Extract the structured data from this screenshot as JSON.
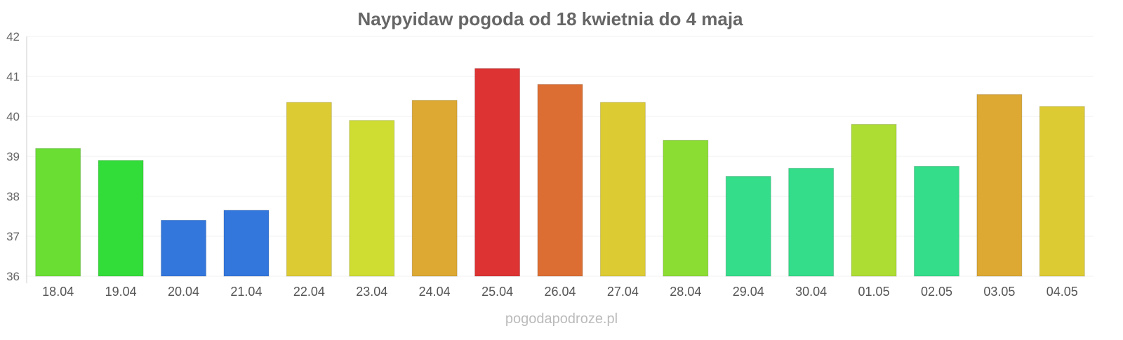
{
  "chart_data": {
    "type": "bar",
    "title": "Naypyidaw pogoda od 18 kwietnia do 4 maja",
    "xlabel": "",
    "ylabel": "",
    "ylim": [
      36,
      42
    ],
    "yticks": [
      "36",
      "37",
      "38",
      "39",
      "40",
      "41",
      "42"
    ],
    "grid": true,
    "categories": [
      "18.04",
      "19.04",
      "20.04",
      "21.04",
      "22.04",
      "23.04",
      "24.04",
      "25.04",
      "26.04",
      "27.04",
      "28.04",
      "29.04",
      "30.04",
      "01.05",
      "02.05",
      "03.05",
      "04.05"
    ],
    "values": [
      39.2,
      38.9,
      37.4,
      37.65,
      40.35,
      39.9,
      40.4,
      41.2,
      40.8,
      40.35,
      39.4,
      38.5,
      38.7,
      39.8,
      38.75,
      40.55,
      40.25
    ],
    "colors": [
      "#6ade33",
      "#33dd39",
      "#3377dd",
      "#3377dd",
      "#ddcb33",
      "#cfdd33",
      "#dda933",
      "#dd3333",
      "#dd6e33",
      "#ddcb33",
      "#8cdd33",
      "#33dd89",
      "#33dd89",
      "#addd33",
      "#33dd89",
      "#dda933",
      "#ddcb33"
    ],
    "watermark": "pogodapodroze.pl"
  }
}
